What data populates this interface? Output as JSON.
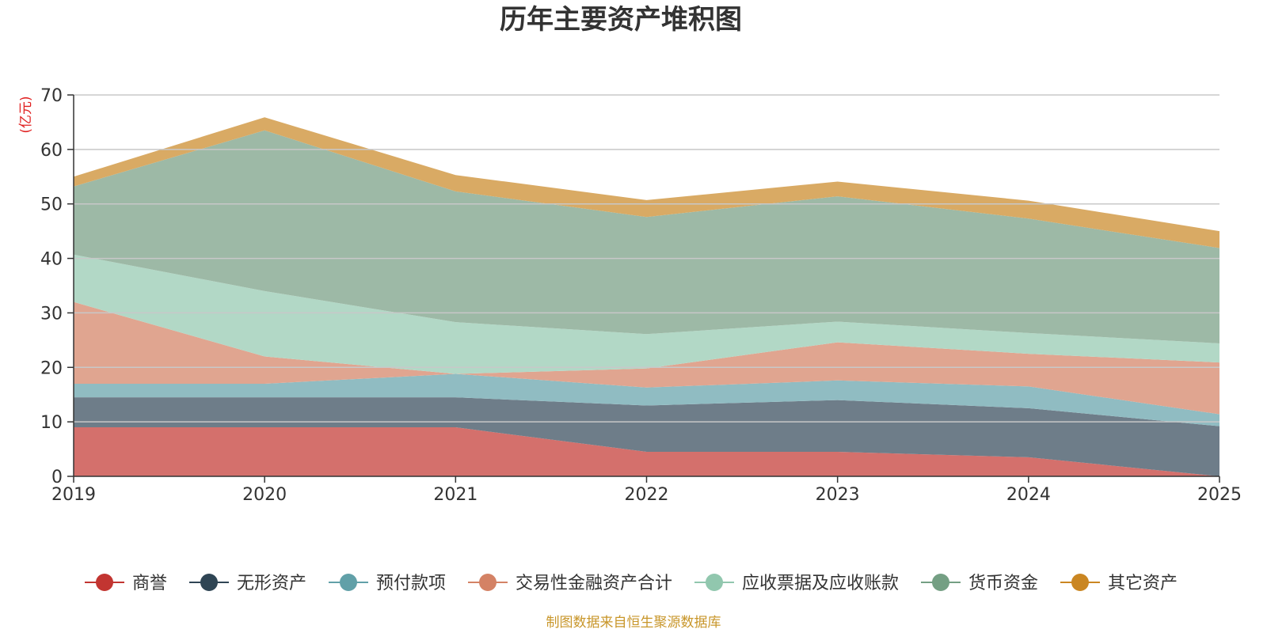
{
  "chart_data": {
    "type": "area",
    "stacked": true,
    "title": "历年主要资产堆积图",
    "ylabel": "(亿元)",
    "xlabel": "",
    "x": [
      "2019",
      "2020",
      "2021",
      "2022",
      "2023",
      "2024",
      "2025"
    ],
    "ylim": [
      0,
      70
    ],
    "yticks": [
      0,
      10,
      20,
      30,
      40,
      50,
      60,
      70
    ],
    "grid": true,
    "legend_position": "bottom",
    "source": "制图数据来自恒生聚源数据库",
    "series": [
      {
        "name": "商誉",
        "color": "#c23531",
        "fill": "#d4706c",
        "values": [
          9.0,
          9.0,
          9.0,
          4.5,
          4.5,
          3.5,
          0.0
        ]
      },
      {
        "name": "无形资产",
        "color": "#2f4554",
        "fill": "#6e7d89",
        "values": [
          5.5,
          5.5,
          5.5,
          8.5,
          9.5,
          9.0,
          9.2
        ]
      },
      {
        "name": "预付款项",
        "color": "#61a0a8",
        "fill": "#90bcc2",
        "values": [
          2.5,
          2.5,
          4.3,
          3.3,
          3.6,
          4.0,
          2.2
        ]
      },
      {
        "name": "交易性金融资产合计",
        "color": "#d48265",
        "fill": "#e0a590",
        "values": [
          15.0,
          5.0,
          0.0,
          3.5,
          7.0,
          6.0,
          9.5
        ]
      },
      {
        "name": "应收票据及应收账款",
        "color": "#91c7ae",
        "fill": "#b2d8c6",
        "values": [
          8.7,
          12.0,
          9.5,
          6.3,
          3.8,
          3.8,
          3.5
        ]
      },
      {
        "name": "货币资金",
        "color": "#749f83",
        "fill": "#9db9a6",
        "values": [
          12.5,
          29.5,
          24.0,
          21.5,
          23.0,
          21.0,
          17.5
        ]
      },
      {
        "name": "其它资产",
        "color": "#ca8622",
        "fill": "#d9aa64",
        "values": [
          1.8,
          2.4,
          3.0,
          3.1,
          2.7,
          3.3,
          3.1
        ]
      }
    ]
  }
}
